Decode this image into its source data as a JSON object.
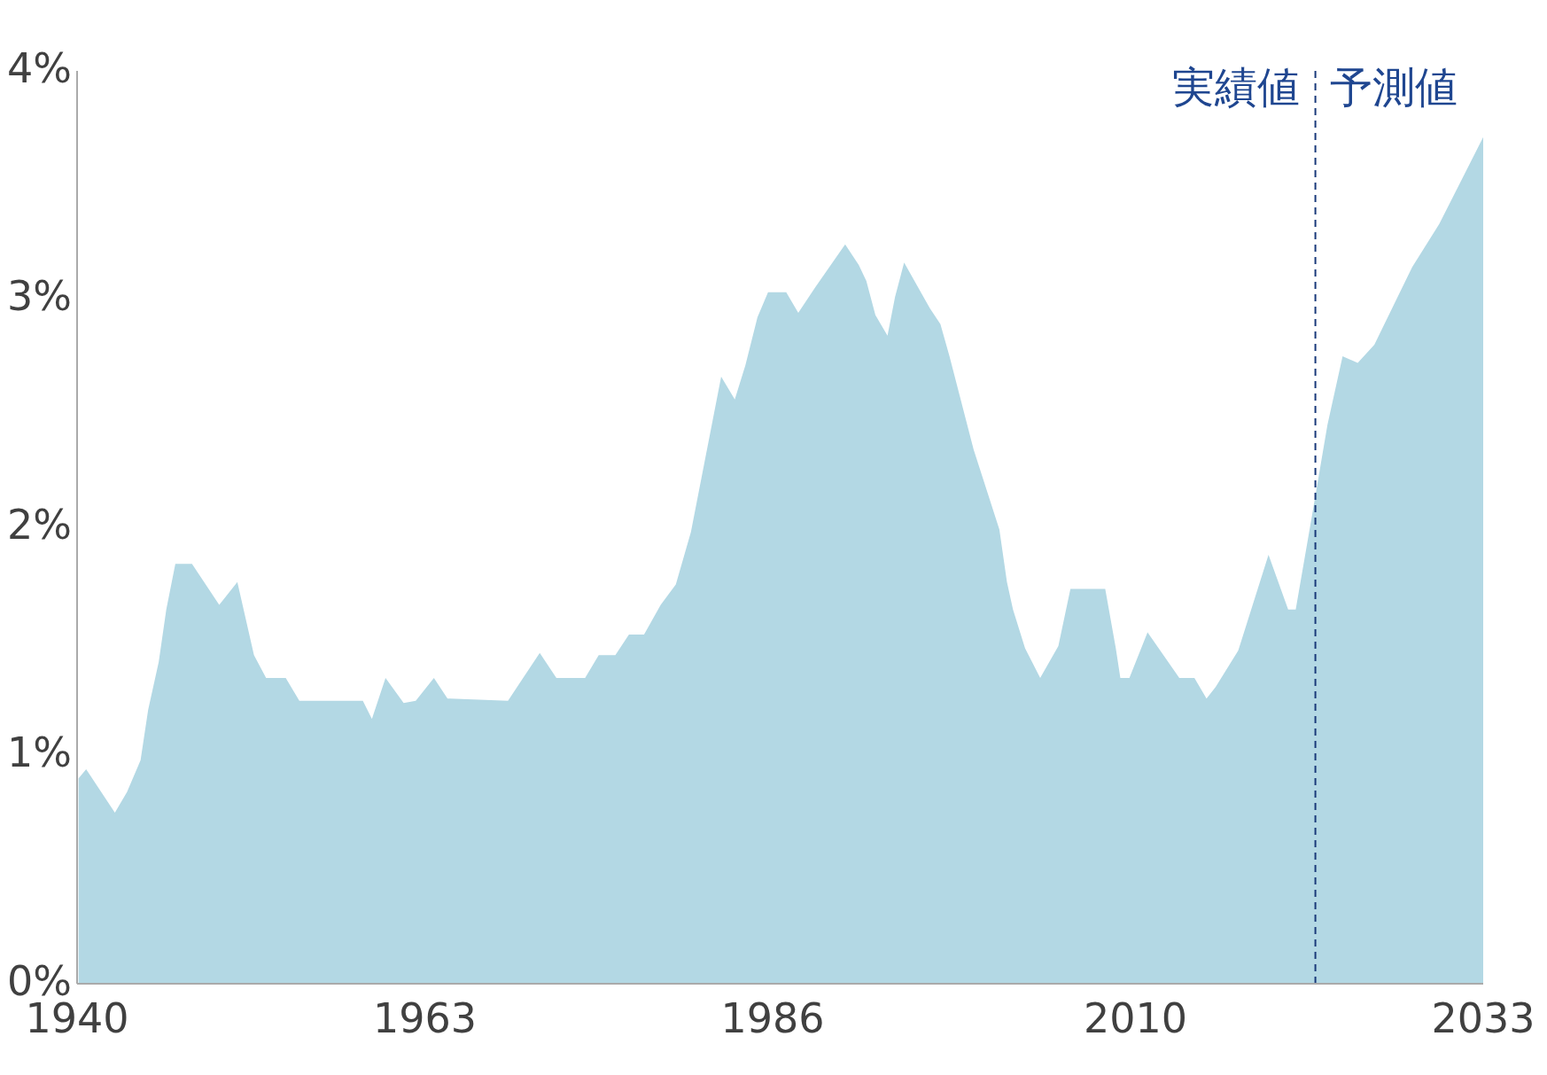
{
  "chart_data": {
    "type": "area",
    "color": "#b3d8e4",
    "x": [
      1940.1,
      1940.6,
      1942.5,
      1943.3,
      1944.2,
      1944.7,
      1945.4,
      1945.9,
      1946.5,
      1947.6,
      1949.4,
      1950.6,
      1951.7,
      1952.5,
      1953.8,
      1954.7,
      1958.9,
      1959.5,
      1960.4,
      1961.6,
      1962.4,
      1963.6,
      1964.5,
      1968.5,
      1970.6,
      1971.7,
      1973.6,
      1974.5,
      1975.6,
      1976.5,
      1977.5,
      1978.6,
      1979.6,
      1980.6,
      1981.6,
      1982.6,
      1983.5,
      1984.2,
      1985.0,
      1985.7,
      1986.9,
      1987.7,
      1988.8,
      1990.8,
      1991.7,
      1992.2,
      1992.8,
      1993.6,
      1994.1,
      1994.7,
      1996.4,
      1997.1,
      1997.7,
      1999.3,
      2001.0,
      2001.5,
      2001.9,
      2002.7,
      2003.7,
      2004.9,
      2005.7,
      2008.0,
      2008.7,
      2009.0,
      2009.6,
      2010.8,
      2012.9,
      2013.9,
      2014.7,
      2015.3,
      2016.8,
      2018.8,
      2020.1,
      2020.6,
      2021.7,
      2022.7,
      2023.7,
      2024.7,
      2025.8,
      2028.3,
      2030.1,
      2033.0
    ],
    "values": [
      0.9,
      0.94,
      0.75,
      0.84,
      0.98,
      1.2,
      1.41,
      1.64,
      1.84,
      1.84,
      1.66,
      1.76,
      1.44,
      1.34,
      1.34,
      1.24,
      1.24,
      1.16,
      1.34,
      1.23,
      1.24,
      1.34,
      1.25,
      1.24,
      1.45,
      1.34,
      1.34,
      1.44,
      1.44,
      1.53,
      1.53,
      1.66,
      1.75,
      1.98,
      2.32,
      2.66,
      2.56,
      2.71,
      2.92,
      3.03,
      3.03,
      2.94,
      3.05,
      3.24,
      3.15,
      3.08,
      2.93,
      2.84,
      3.01,
      3.16,
      2.96,
      2.89,
      2.75,
      2.34,
      1.99,
      1.76,
      1.64,
      1.47,
      1.34,
      1.48,
      1.73,
      1.73,
      1.47,
      1.34,
      1.34,
      1.54,
      1.34,
      1.34,
      1.25,
      1.3,
      1.46,
      1.88,
      1.64,
      1.64,
      2.06,
      2.45,
      2.75,
      2.72,
      2.8,
      3.14,
      3.33,
      3.71
    ],
    "xlim": [
      1940,
      2033
    ],
    "xticks": [
      1940,
      1963,
      1986,
      2010,
      2033
    ],
    "ylim": [
      0,
      4
    ],
    "yticks": [
      {
        "value": 0,
        "label": "0%"
      },
      {
        "value": 1,
        "label": "1%"
      },
      {
        "value": 2,
        "label": "2%"
      },
      {
        "value": 3,
        "label": "3%"
      },
      {
        "value": 4,
        "label": "4%"
      }
    ],
    "ref_lines": [
      {
        "axis": "x",
        "value": 2021.9,
        "label": null,
        "color": "#1a3a7a",
        "line_style": "dashed"
      }
    ],
    "annotations": [
      "実績値",
      "予測値"
    ]
  }
}
